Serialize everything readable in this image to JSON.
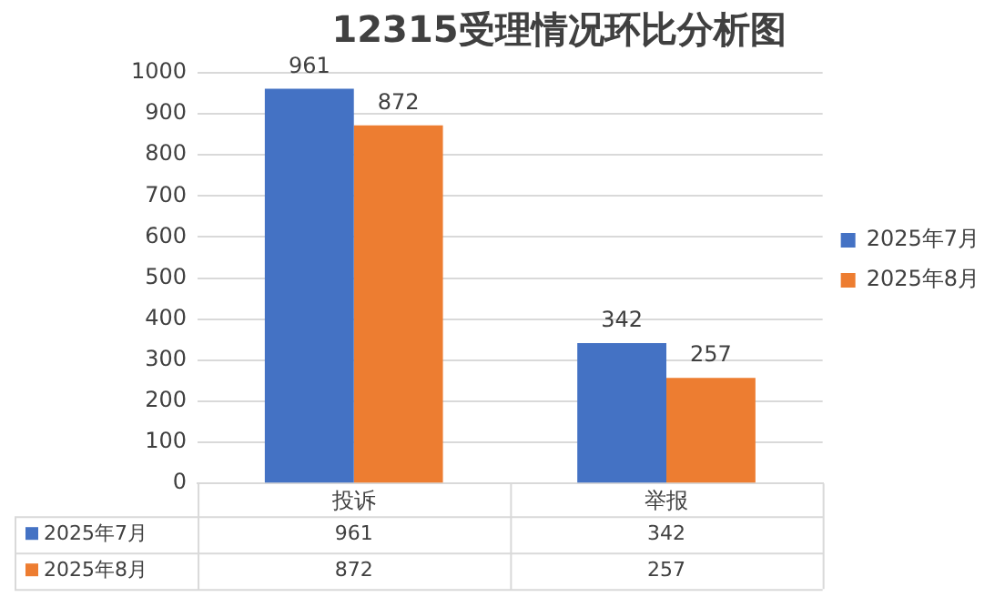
{
  "chart_data": {
    "type": "bar",
    "title": "12315受理情况环比分析图",
    "categories": [
      "投诉",
      "举报"
    ],
    "series": [
      {
        "name": "2025年7月",
        "color": "#4472c4",
        "values": [
          961,
          342
        ],
        "value_labels": [
          "961",
          "342"
        ]
      },
      {
        "name": "2025年8月",
        "color": "#ed7d31",
        "values": [
          872,
          257
        ],
        "value_labels": [
          "872",
          "257"
        ]
      }
    ],
    "ylim": [
      0,
      1000
    ],
    "yticks": [
      0,
      100,
      200,
      300,
      400,
      500,
      600,
      700,
      800,
      900,
      1000
    ],
    "annotations": [
      "961",
      "342",
      "872",
      "257"
    ],
    "grid": "y",
    "legend": "right",
    "data_labels": true
  }
}
